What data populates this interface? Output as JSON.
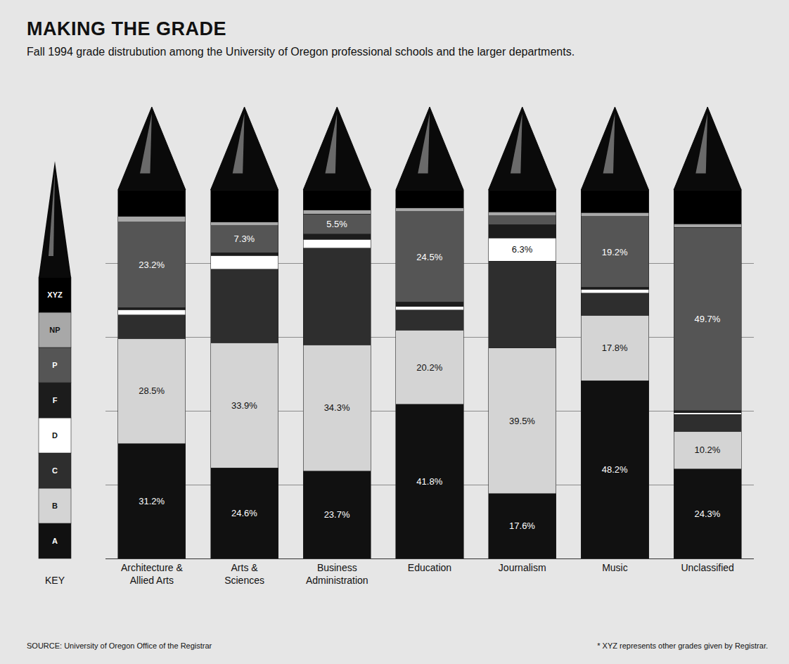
{
  "chart_data": {
    "type": "bar",
    "title": "MAKING THE GRADE",
    "subtitle": "Fall 1994 grade distrubution among the University of Oregon professional schools and the larger departments.",
    "source": "SOURCE: University of Oregon Office of the Registrar",
    "note": "* XYZ represents other grades given by Registrar.",
    "key_label": "KEY",
    "categories": [
      "Architecture & Allied Arts",
      "Arts & Sciences",
      "Business Administration",
      "Education",
      "Journalism",
      "Music",
      "Unclassified"
    ],
    "stacked": true,
    "data_labels": true,
    "grid": true,
    "tick_labels": "x",
    "legend": "left",
    "ylim": [
      0,
      100
    ],
    "yticks": [
      0,
      20,
      40,
      60,
      80,
      100
    ],
    "series": [
      {
        "name": "A",
        "color": "#111111",
        "values": [
          31.2,
          24.6,
          23.7,
          41.8,
          17.6,
          48.2,
          24.3
        ],
        "value_labels": [
          "31.2%",
          "24.6%",
          "23.7%",
          "41.8%",
          "17.6%",
          "48.2%",
          "24.3%"
        ]
      },
      {
        "name": "B",
        "color": "#d4d4d4",
        "values": [
          28.5,
          33.9,
          34.3,
          20.2,
          39.5,
          17.8,
          10.2
        ],
        "value_labels": [
          "28.5%",
          "33.9%",
          "34.3%",
          "20.2%",
          "39.5%",
          "17.8%",
          "10.2%"
        ]
      },
      {
        "name": "C",
        "color": "#2e2e2e",
        "values": [
          6.4,
          20.0,
          26.2,
          5.4,
          23.6,
          6.0,
          4.6
        ]
      },
      {
        "name": "D",
        "color": "#ffffff",
        "values": [
          1.4,
          3.7,
          2.4,
          1.0,
          6.3,
          1.0,
          0.5
        ],
        "value_labels": [
          null,
          null,
          null,
          null,
          "6.3%",
          null,
          null
        ]
      },
      {
        "name": "F",
        "color": "#1c1c1c",
        "values": [
          0.6,
          0.8,
          1.4,
          1.2,
          3.6,
          0.6,
          0.5
        ]
      },
      {
        "name": "P",
        "color": "#555555",
        "values": [
          23.2,
          7.3,
          5.5,
          24.5,
          2.4,
          19.2,
          49.7
        ],
        "value_labels": [
          "23.2%",
          "7.3%",
          "5.5%",
          "24.5%",
          null,
          "19.2%",
          "49.7%"
        ]
      },
      {
        "name": "NP",
        "color": "#a8a8a8",
        "values": [
          1.5,
          1.0,
          1.0,
          1.0,
          1.0,
          1.0,
          1.0
        ]
      },
      {
        "name": "XYZ",
        "color": "#000000",
        "values": [
          7.2,
          8.7,
          5.5,
          4.9,
          6.0,
          6.2,
          9.2
        ]
      }
    ]
  }
}
